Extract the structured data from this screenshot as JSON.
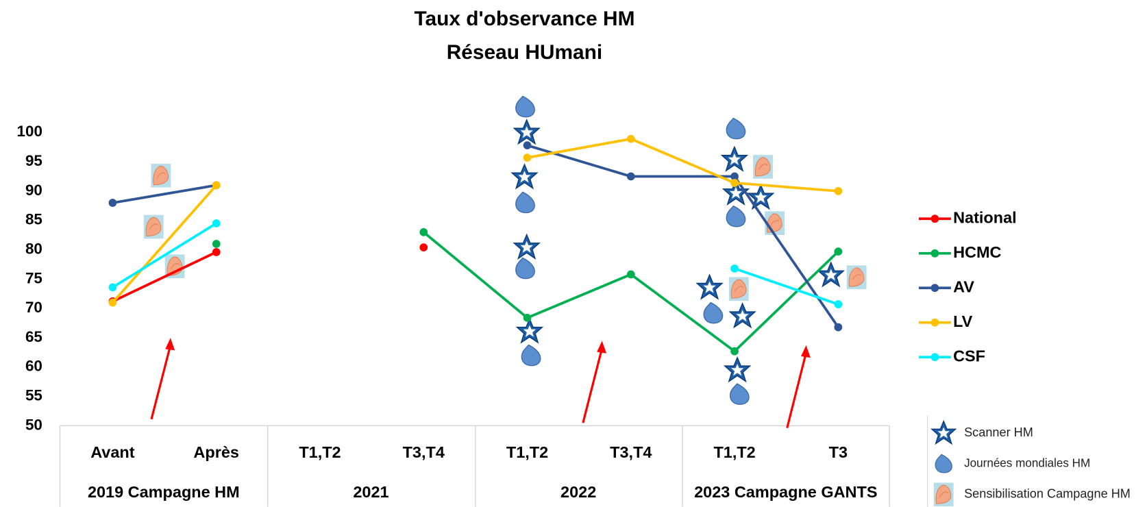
{
  "chart_data": {
    "type": "line",
    "title": "Taux d'observance HM",
    "subtitle": "Réseau HUmani",
    "categories": [
      "Avant",
      "Après",
      "T1,T2",
      "T3,T4",
      "T1,T2",
      "T3,T4",
      "T1,T2",
      "T3"
    ],
    "category_groups": [
      "2019 Campagne HM",
      "2021",
      "2022",
      "2023 Campagne GANTS"
    ],
    "ylim": [
      50,
      100
    ],
    "yticks": [
      50,
      55,
      60,
      65,
      70,
      75,
      80,
      85,
      90,
      95,
      100
    ],
    "grid": false,
    "legend": "right",
    "series": [
      {
        "name": "National",
        "color": "#ff0000",
        "values": [
          71.2,
          79.6,
          null,
          80.4,
          null,
          null,
          null,
          null
        ]
      },
      {
        "name": "HCMC",
        "color": "#00b050",
        "values": [
          null,
          81,
          null,
          83,
          68.4,
          75.8,
          62.7,
          79.7
        ]
      },
      {
        "name": "AV",
        "color": "#2f5597",
        "values": [
          88,
          91,
          null,
          null,
          97.8,
          92.5,
          92.5,
          66.8
        ]
      },
      {
        "name": "LV",
        "color": "#ffc000",
        "values": [
          71,
          91,
          null,
          null,
          95.7,
          98.9,
          91.4,
          90
        ]
      },
      {
        "name": "CSF",
        "color": "#00eeff",
        "values": [
          73.6,
          84.5,
          null,
          null,
          null,
          null,
          76.8,
          70.7
        ]
      }
    ],
    "annotation_legend": [
      "Scanner HM",
      "Journées mondiales HM",
      "Sensibilisation Campagne HM"
    ]
  }
}
